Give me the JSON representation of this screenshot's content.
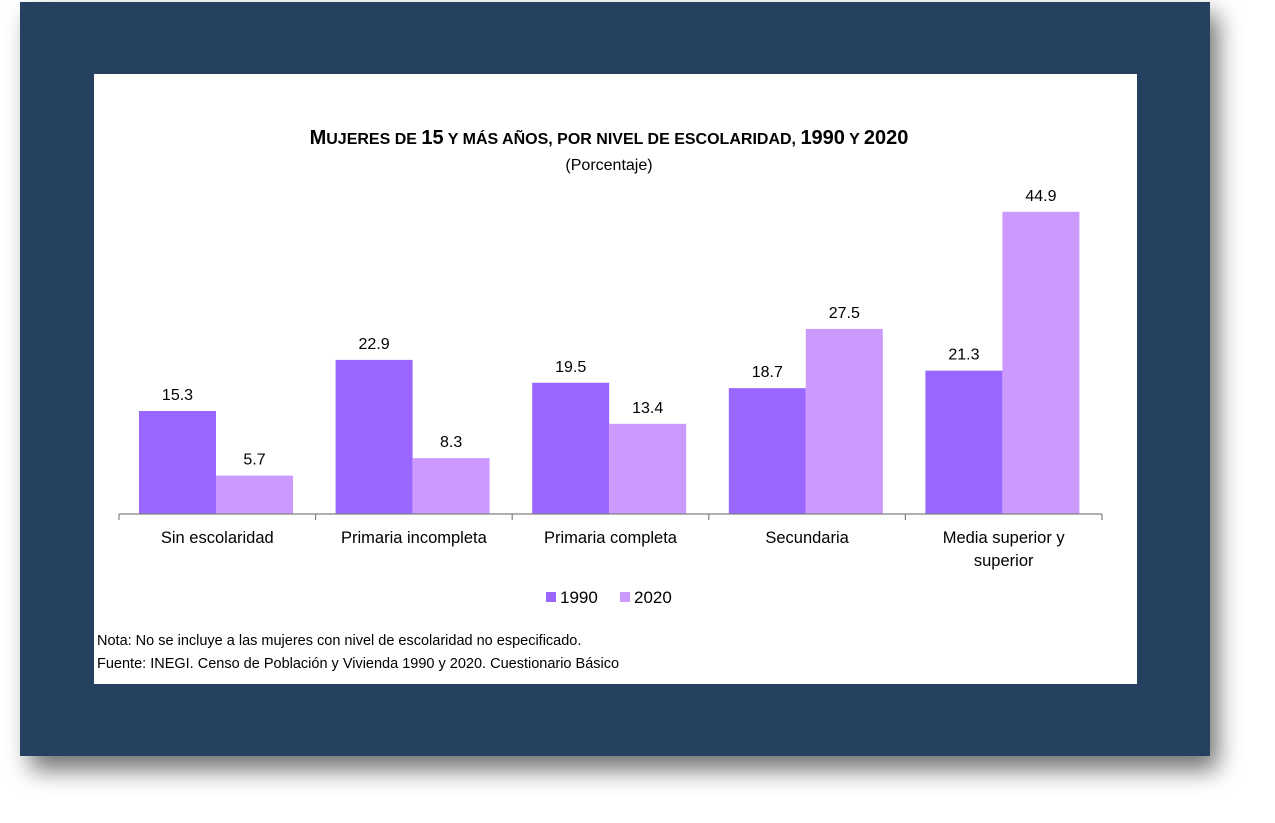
{
  "colors": {
    "series_1990": "#9966ff",
    "series_2020": "#cc99ff",
    "frame": "#26405f",
    "axis": "#808080"
  },
  "chart_data": {
    "type": "bar",
    "title_parts": [
      {
        "text": "M",
        "small": false
      },
      {
        "text": "UJERES DE ",
        "small": true
      },
      {
        "text": "15",
        "small": false
      },
      {
        "text": " Y MÁS AÑOS, POR NIVEL DE ESCOLARIDAD, ",
        "small": true
      },
      {
        "text": "1990",
        "small": false
      },
      {
        "text": " Y ",
        "small": true
      },
      {
        "text": "2020",
        "small": false
      }
    ],
    "subtitle": "(Porcentaje)",
    "categories": [
      [
        "Sin escolaridad"
      ],
      [
        "Primaria incompleta"
      ],
      [
        "Primaria completa"
      ],
      [
        "Secundaria"
      ],
      [
        "Media superior y",
        "superior"
      ]
    ],
    "series": [
      {
        "name": "1990",
        "values": [
          15.3,
          22.9,
          19.5,
          18.7,
          21.3
        ]
      },
      {
        "name": "2020",
        "values": [
          5.7,
          8.3,
          13.4,
          27.5,
          44.9
        ]
      }
    ],
    "ylim": [
      0,
      50
    ],
    "grid": false,
    "legend_position": "bottom-center"
  },
  "notes": {
    "nota": "Nota: No se incluye a las mujeres con nivel de escolaridad no especificado.",
    "fuente": "Fuente: INEGI. Censo de Población y Vivienda 1990 y 2020. Cuestionario Básico"
  }
}
